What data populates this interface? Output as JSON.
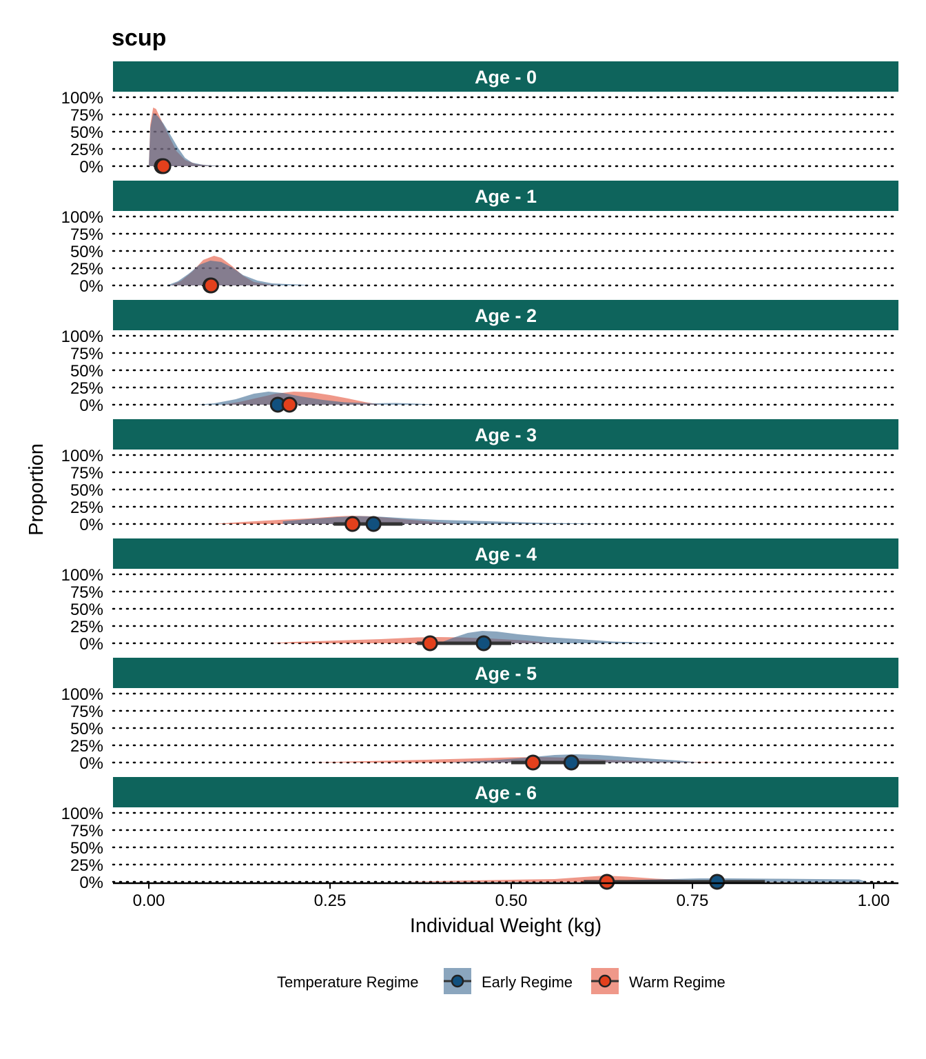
{
  "chart_data": {
    "type": "area",
    "subtype": "ridgeline-density-with-median-points",
    "title": "scup",
    "xlabel": "Individual Weight (kg)",
    "ylabel": "Proportion",
    "xlim": [
      -0.05,
      1.04
    ],
    "ylim": [
      0,
      1
    ],
    "x_ticks": [
      "0.00",
      "0.25",
      "0.50",
      "0.75",
      "1.00"
    ],
    "x_tick_values": [
      0,
      0.25,
      0.5,
      0.75,
      1.0
    ],
    "y_ticks": [
      "0%",
      "25%",
      "50%",
      "75%",
      "100%"
    ],
    "y_tick_values": [
      0,
      0.25,
      0.5,
      0.75,
      1.0
    ],
    "grid": "horizontal dotted",
    "legend_position": "bottom",
    "legend_title": "Temperature Regime",
    "colors": {
      "strip_bg": "#0e645c",
      "early_fill": "#3d6b93",
      "early_point": "#11507e",
      "warm_fill": "#e5533a",
      "warm_point": "#e3401c",
      "point_stroke": "#222222"
    },
    "series": [
      {
        "name": "Early Regime",
        "key": "early"
      },
      {
        "name": "Warm Regime",
        "key": "warm"
      }
    ],
    "panels": [
      {
        "label": "Age - 0",
        "early": {
          "density": [
            [
              0.0,
              0
            ],
            [
              0.002,
              0.55
            ],
            [
              0.006,
              0.77
            ],
            [
              0.012,
              0.73
            ],
            [
              0.02,
              0.62
            ],
            [
              0.03,
              0.45
            ],
            [
              0.04,
              0.27
            ],
            [
              0.05,
              0.12
            ],
            [
              0.06,
              0.05
            ],
            [
              0.075,
              0.02
            ],
            [
              0.09,
              0.008
            ],
            [
              0.105,
              0
            ]
          ],
          "median": 0.018,
          "interval": [
            0.01,
            0.03
          ]
        },
        "warm": {
          "density": [
            [
              0.0,
              0
            ],
            [
              0.002,
              0.6
            ],
            [
              0.006,
              0.85
            ],
            [
              0.01,
              0.83
            ],
            [
              0.018,
              0.65
            ],
            [
              0.028,
              0.43
            ],
            [
              0.038,
              0.22
            ],
            [
              0.05,
              0.09
            ],
            [
              0.065,
              0.03
            ],
            [
              0.085,
              0.008
            ],
            [
              0.1,
              0
            ]
          ],
          "median": 0.02,
          "interval": [
            0.012,
            0.03
          ]
        }
      },
      {
        "label": "Age - 1",
        "early": {
          "density": [
            [
              0.025,
              0
            ],
            [
              0.04,
              0.06
            ],
            [
              0.055,
              0.17
            ],
            [
              0.07,
              0.3
            ],
            [
              0.085,
              0.36
            ],
            [
              0.1,
              0.34
            ],
            [
              0.115,
              0.26
            ],
            [
              0.13,
              0.15
            ],
            [
              0.15,
              0.07
            ],
            [
              0.17,
              0.03
            ],
            [
              0.19,
              0.02
            ],
            [
              0.21,
              0.012
            ],
            [
              0.225,
              0
            ]
          ],
          "median": 0.085,
          "interval": [
            0.078,
            0.092
          ]
        },
        "warm": {
          "density": [
            [
              0.03,
              0
            ],
            [
              0.045,
              0.07
            ],
            [
              0.06,
              0.2
            ],
            [
              0.075,
              0.37
            ],
            [
              0.09,
              0.43
            ],
            [
              0.1,
              0.4
            ],
            [
              0.115,
              0.28
            ],
            [
              0.13,
              0.14
            ],
            [
              0.145,
              0.05
            ],
            [
              0.165,
              0.015
            ],
            [
              0.18,
              0
            ]
          ],
          "median": 0.086,
          "interval": [
            0.079,
            0.093
          ]
        }
      },
      {
        "label": "Age - 2",
        "early": {
          "density": [
            [
              0.065,
              0
            ],
            [
              0.09,
              0.02
            ],
            [
              0.12,
              0.08
            ],
            [
              0.145,
              0.16
            ],
            [
              0.165,
              0.19
            ],
            [
              0.185,
              0.17
            ],
            [
              0.21,
              0.12
            ],
            [
              0.24,
              0.07
            ],
            [
              0.27,
              0.035
            ],
            [
              0.31,
              0.02
            ],
            [
              0.34,
              0.025
            ],
            [
              0.37,
              0.015
            ],
            [
              0.4,
              0
            ]
          ],
          "median": 0.178,
          "interval": [
            0.17,
            0.19
          ]
        },
        "warm": {
          "density": [
            [
              0.1,
              0
            ],
            [
              0.125,
              0.04
            ],
            [
              0.15,
              0.1
            ],
            [
              0.175,
              0.16
            ],
            [
              0.2,
              0.19
            ],
            [
              0.225,
              0.18
            ],
            [
              0.25,
              0.14
            ],
            [
              0.275,
              0.09
            ],
            [
              0.3,
              0.035
            ],
            [
              0.32,
              0
            ]
          ],
          "median": 0.194,
          "interval": [
            0.185,
            0.205
          ]
        }
      },
      {
        "label": "Age - 3",
        "early": {
          "density": [
            [
              0.185,
              0
            ],
            [
              0.185,
              0.04
            ],
            [
              0.22,
              0.07
            ],
            [
              0.26,
              0.1
            ],
            [
              0.29,
              0.115
            ],
            [
              0.32,
              0.105
            ],
            [
              0.36,
              0.08
            ],
            [
              0.4,
              0.06
            ],
            [
              0.45,
              0.045
            ],
            [
              0.5,
              0.03
            ],
            [
              0.55,
              0.015
            ],
            [
              0.6,
              0.008
            ],
            [
              0.65,
              0
            ]
          ],
          "median": 0.31,
          "interval": [
            0.27,
            0.35
          ]
        },
        "warm": {
          "density": [
            [
              0.09,
              0
            ],
            [
              0.13,
              0.03
            ],
            [
              0.18,
              0.06
            ],
            [
              0.22,
              0.08
            ],
            [
              0.26,
              0.11
            ],
            [
              0.28,
              0.12
            ],
            [
              0.31,
              0.11
            ],
            [
              0.35,
              0.07
            ],
            [
              0.39,
              0.035
            ],
            [
              0.43,
              0
            ]
          ],
          "median": 0.281,
          "interval": [
            0.255,
            0.3
          ]
        }
      },
      {
        "label": "Age - 4",
        "early": {
          "density": [
            [
              0.4,
              0
            ],
            [
              0.42,
              0.08
            ],
            [
              0.44,
              0.15
            ],
            [
              0.46,
              0.18
            ],
            [
              0.48,
              0.17
            ],
            [
              0.51,
              0.13
            ],
            [
              0.55,
              0.09
            ],
            [
              0.6,
              0.055
            ],
            [
              0.64,
              0.025
            ],
            [
              0.68,
              0.012
            ],
            [
              0.72,
              0
            ]
          ],
          "median": 0.462,
          "interval": [
            0.4,
            0.5
          ]
        },
        "warm": {
          "density": [
            [
              0.165,
              0
            ],
            [
              0.2,
              0.02
            ],
            [
              0.26,
              0.04
            ],
            [
              0.32,
              0.06
            ],
            [
              0.37,
              0.085
            ],
            [
              0.4,
              0.09
            ],
            [
              0.43,
              0.085
            ],
            [
              0.47,
              0.07
            ],
            [
              0.52,
              0.04
            ],
            [
              0.56,
              0
            ]
          ],
          "median": 0.388,
          "interval": [
            0.37,
            0.47
          ]
        }
      },
      {
        "label": "Age - 5",
        "early": {
          "density": [
            [
              0.41,
              0
            ],
            [
              0.47,
              0.03
            ],
            [
              0.52,
              0.07
            ],
            [
              0.56,
              0.11
            ],
            [
              0.59,
              0.12
            ],
            [
              0.62,
              0.11
            ],
            [
              0.66,
              0.08
            ],
            [
              0.7,
              0.05
            ],
            [
              0.73,
              0.03
            ],
            [
              0.76,
              0
            ]
          ],
          "median": 0.583,
          "interval": [
            0.5,
            0.63
          ]
        },
        "warm": {
          "density": [
            [
              0.22,
              0
            ],
            [
              0.3,
              0.02
            ],
            [
              0.38,
              0.04
            ],
            [
              0.45,
              0.06
            ],
            [
              0.5,
              0.075
            ],
            [
              0.54,
              0.08
            ],
            [
              0.58,
              0.07
            ],
            [
              0.63,
              0.04
            ],
            [
              0.7,
              0.015
            ],
            [
              0.78,
              0.004
            ],
            [
              0.85,
              0
            ]
          ],
          "median": 0.53,
          "interval": [
            0.52,
            0.6
          ]
        }
      },
      {
        "label": "Age - 6",
        "early": {
          "density": [
            [
              0.6,
              0
            ],
            [
              0.64,
              0.02
            ],
            [
              0.7,
              0.035
            ],
            [
              0.76,
              0.05
            ],
            [
              0.8,
              0.05
            ],
            [
              0.86,
              0.045
            ],
            [
              0.92,
              0.04
            ],
            [
              0.98,
              0.035
            ],
            [
              0.99,
              0
            ]
          ],
          "median": 0.784,
          "interval": [
            0.64,
            0.85
          ]
        },
        "warm": {
          "density": [
            [
              0.35,
              0
            ],
            [
              0.42,
              0.015
            ],
            [
              0.5,
              0.03
            ],
            [
              0.56,
              0.04
            ],
            [
              0.6,
              0.07
            ],
            [
              0.63,
              0.09
            ],
            [
              0.66,
              0.075
            ],
            [
              0.7,
              0.045
            ],
            [
              0.76,
              0.02
            ],
            [
              0.82,
              0.006
            ],
            [
              0.88,
              0
            ]
          ],
          "median": 0.632,
          "interval": [
            0.6,
            0.8
          ]
        }
      }
    ]
  }
}
